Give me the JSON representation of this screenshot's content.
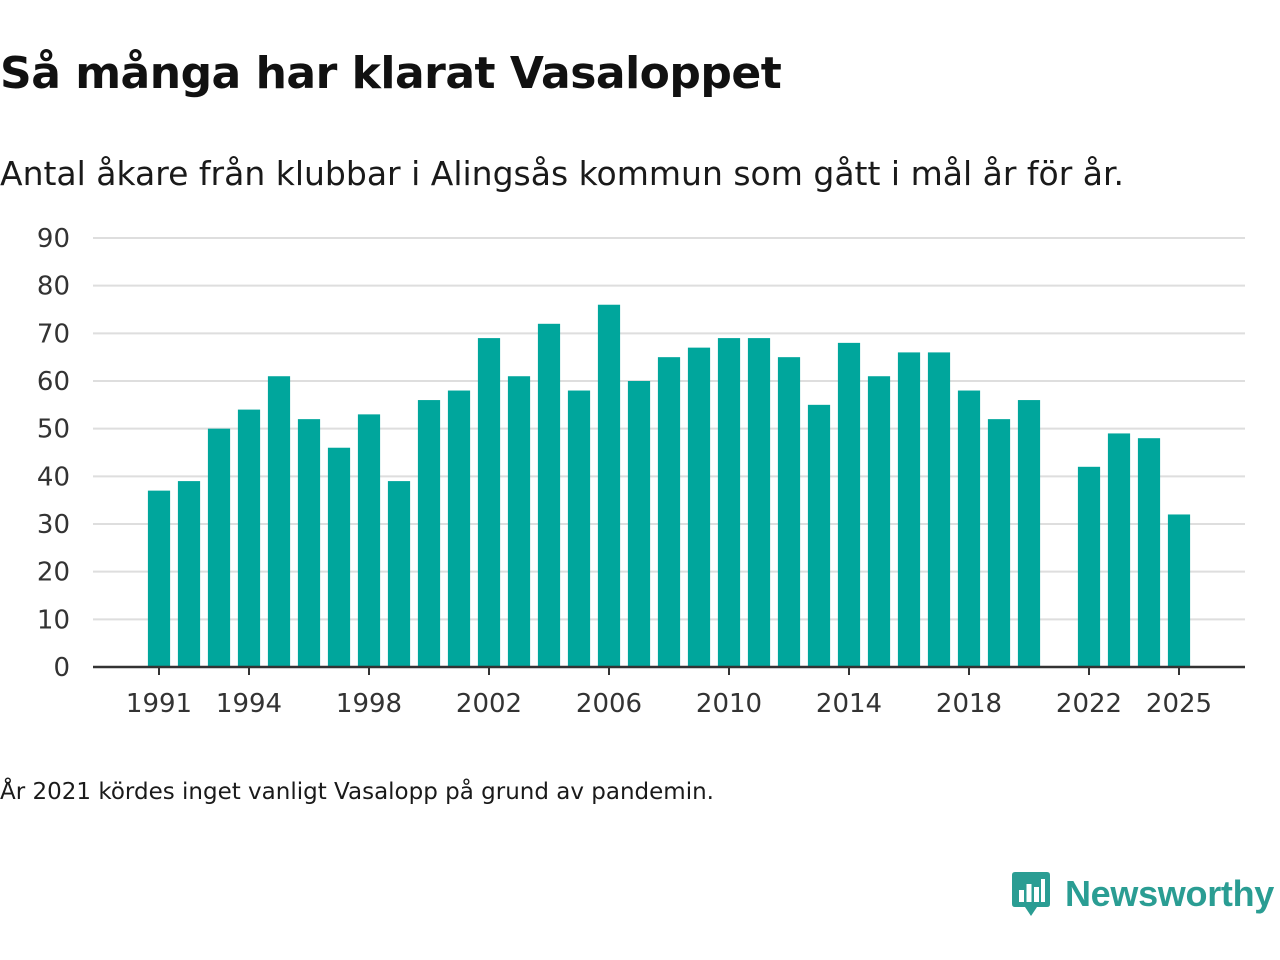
{
  "title": "Så många har klarat Vasaloppet",
  "subtitle": "Antal åkare från klubbar i Alingsås kommun som gått i mål år för år.",
  "note": "År 2021 kördes inget vanligt Vasalopp på grund av pandemin.",
  "brand": {
    "name": "Newsworthy",
    "icon": "newsworthy-logo-icon"
  },
  "colors": {
    "bar": "#00a69c",
    "grid": "#dedede",
    "axis": "#333333",
    "brand": "#2a9d93"
  },
  "chart_data": {
    "type": "bar",
    "title": "Så många har klarat Vasaloppet",
    "xlabel": "",
    "ylabel": "",
    "ylim": [
      0,
      90
    ],
    "yticks": [
      0,
      10,
      20,
      30,
      40,
      50,
      60,
      70,
      80,
      90
    ],
    "xlim": [
      1988.8,
      2027.2
    ],
    "xtick_labels": [
      "1991",
      "1994",
      "1998",
      "2002",
      "2006",
      "2010",
      "2014",
      "2018",
      "2022",
      "2025"
    ],
    "grid": true,
    "legend": "none",
    "categories": [
      1991,
      1992,
      1993,
      1994,
      1995,
      1996,
      1997,
      1998,
      1999,
      2000,
      2001,
      2002,
      2003,
      2004,
      2005,
      2006,
      2007,
      2008,
      2009,
      2010,
      2011,
      2012,
      2013,
      2014,
      2015,
      2016,
      2017,
      2018,
      2019,
      2020,
      2022,
      2023,
      2024,
      2025
    ],
    "values": [
      37,
      39,
      50,
      54,
      61,
      52,
      46,
      53,
      39,
      56,
      58,
      69,
      61,
      72,
      58,
      76,
      60,
      65,
      67,
      69,
      69,
      65,
      55,
      68,
      61,
      66,
      66,
      58,
      52,
      56,
      42,
      49,
      48,
      32
    ]
  }
}
